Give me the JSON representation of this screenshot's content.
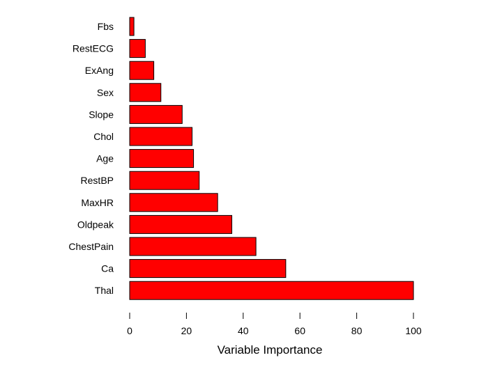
{
  "chart_data": {
    "type": "bar",
    "orientation": "horizontal",
    "title": "",
    "xlabel": "Variable Importance",
    "ylabel": "",
    "categories": [
      "Fbs",
      "RestECG",
      "ExAng",
      "Sex",
      "Slope",
      "Chol",
      "Age",
      "RestBP",
      "MaxHR",
      "Oldpeak",
      "ChestPain",
      "Ca",
      "Thal"
    ],
    "values": [
      1.5,
      5.5,
      8.5,
      11,
      18.5,
      22,
      22.5,
      24.5,
      31,
      36,
      44.5,
      55,
      100
    ],
    "xlim": [
      0,
      100
    ],
    "xticks": [
      0,
      20,
      40,
      60,
      80,
      100
    ],
    "grid": false,
    "bar_color": "#ff0000",
    "edge_color": "#000000"
  }
}
